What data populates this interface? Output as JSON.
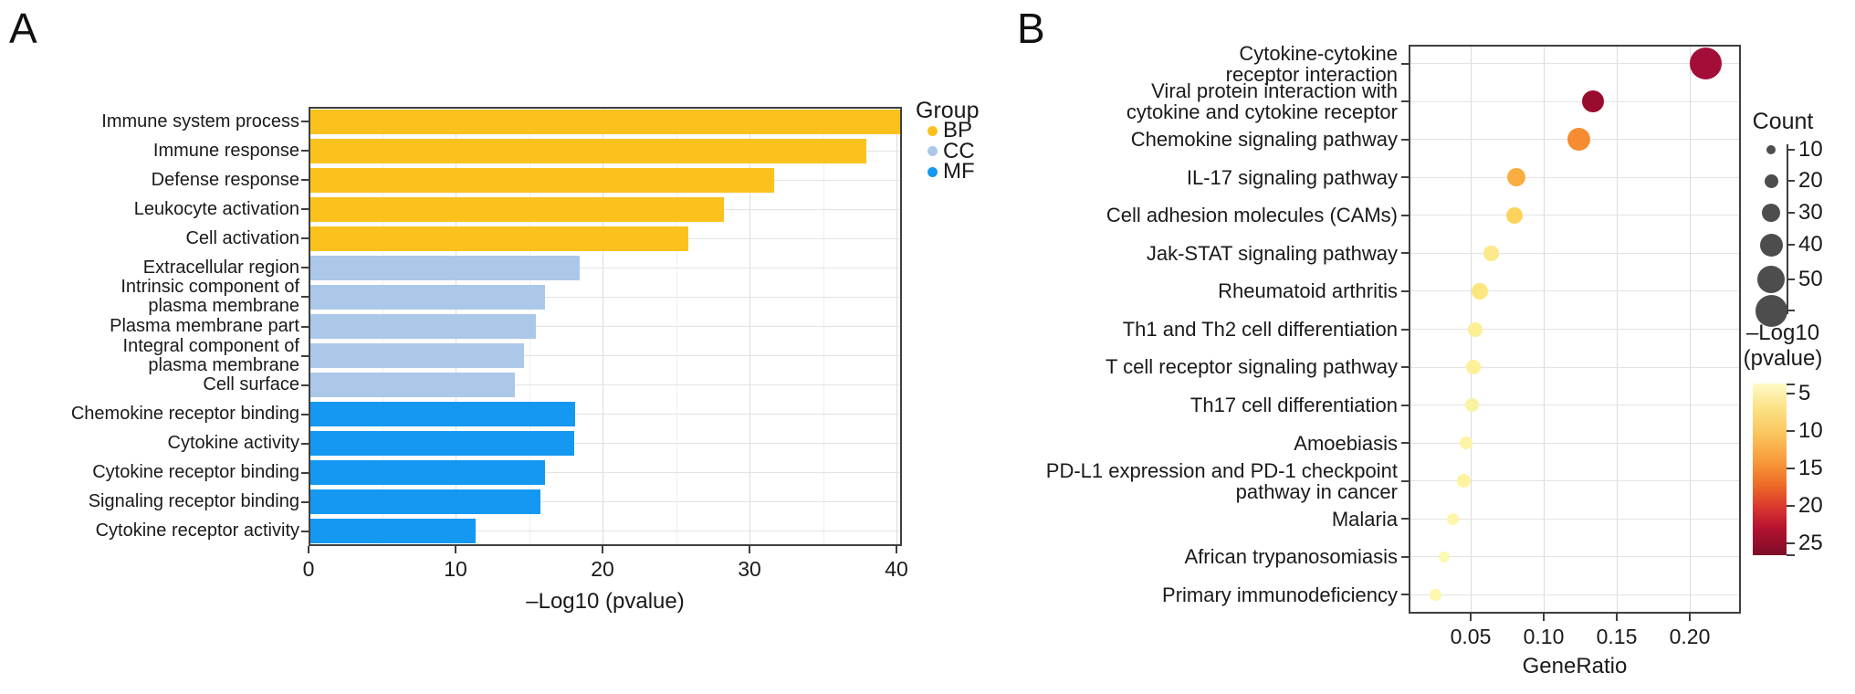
{
  "figure": {
    "panel_a_label": "A",
    "panel_b_label": "B"
  },
  "chart_data": [
    {
      "type": "bar",
      "panel": "A",
      "orientation": "horizontal",
      "xlabel": "–Log10 (pvalue)",
      "xlim": [
        0,
        40.4
      ],
      "xticks": [
        0,
        10,
        20,
        30,
        40
      ],
      "xtick_labels": [
        "0",
        "10",
        "20",
        "30",
        "40"
      ],
      "grid": true,
      "legend": {
        "title": "Group",
        "entries": [
          {
            "label": "BP",
            "color": "#FBC21E"
          },
          {
            "label": "CC",
            "color": "#ACC8E9"
          },
          {
            "label": "MF",
            "color": "#1598F2"
          }
        ]
      },
      "categories": [
        "Immune system process",
        "Immune response",
        "Defense response",
        "Leukocyte activation",
        "Cell activation",
        "Extracellular region",
        "Intrinsic component of\nplasma membrane",
        "Plasma membrane part",
        "Integral component of\nplasma membrane",
        "Cell surface",
        "Chemokine receptor binding",
        "Cytokine activity",
        "Cytokine receptor binding",
        "Signaling receptor binding",
        "Cytokine receptor activity"
      ],
      "values": [
        40.2,
        37.9,
        31.6,
        28.2,
        25.8,
        18.4,
        16.0,
        15.4,
        14.6,
        14.0,
        18.1,
        18.0,
        16.0,
        15.7,
        11.3
      ],
      "bar_groups": [
        "BP",
        "BP",
        "BP",
        "BP",
        "BP",
        "CC",
        "CC",
        "CC",
        "CC",
        "CC",
        "MF",
        "MF",
        "MF",
        "MF",
        "MF"
      ]
    },
    {
      "type": "scatter",
      "panel": "B",
      "xlabel": "GeneRatio",
      "xlim": [
        0.0075,
        0.235
      ],
      "xticks": [
        0.05,
        0.1,
        0.15,
        0.2
      ],
      "xtick_labels": [
        "0.05",
        "0.10",
        "0.15",
        "0.20"
      ],
      "grid": true,
      "categories": [
        "Cytokine-cytokine\nreceptor interaction",
        "Viral protein interaction with\ncytokine and cytokine receptor",
        "Chemokine signaling pathway",
        "IL-17 signaling pathway",
        "Cell adhesion molecules (CAMs)",
        "Jak-STAT signaling pathway",
        "Rheumatoid arthritis",
        "Th1 and Th2 cell differentiation",
        "T cell receptor signaling pathway",
        "Th17 cell differentiation",
        "Amoebiasis",
        "PD-L1 expression and PD-1 checkpoint\npathway in cancer",
        "Malaria",
        "African trypanosomiasis",
        "Primary immunodeficiency"
      ],
      "points": [
        {
          "pathway": "Cytokine-cytokine receptor interaction",
          "gene_ratio": 0.211,
          "count": 60,
          "neg_log10_pvalue": 25.0,
          "color": "#A30E38"
        },
        {
          "pathway": "Viral protein interaction with cytokine and cytokine receptor",
          "gene_ratio": 0.134,
          "count": 38,
          "neg_log10_pvalue": 23.0,
          "color": "#9A0C2E"
        },
        {
          "pathway": "Chemokine signaling pathway",
          "gene_ratio": 0.124,
          "count": 40,
          "neg_log10_pvalue": 13.0,
          "color": "#F68B30"
        },
        {
          "pathway": "IL-17 signaling pathway",
          "gene_ratio": 0.081,
          "count": 30,
          "neg_log10_pvalue": 11.0,
          "color": "#FAAD40"
        },
        {
          "pathway": "Cell adhesion molecules (CAMs)",
          "gene_ratio": 0.08,
          "count": 27,
          "neg_log10_pvalue": 9.0,
          "color": "#FCD45C"
        },
        {
          "pathway": "Jak-STAT signaling pathway",
          "gene_ratio": 0.064,
          "count": 23,
          "neg_log10_pvalue": 7.5,
          "color": "#FDE98C"
        },
        {
          "pathway": "Rheumatoid arthritis",
          "gene_ratio": 0.056,
          "count": 26,
          "neg_log10_pvalue": 7.0,
          "color": "#FCE77F"
        },
        {
          "pathway": "Th1 and Th2 cell differentiation",
          "gene_ratio": 0.053,
          "count": 22,
          "neg_log10_pvalue": 6.5,
          "color": "#FCEF94"
        },
        {
          "pathway": "T cell receptor signaling pathway",
          "gene_ratio": 0.052,
          "count": 22,
          "neg_log10_pvalue": 6.5,
          "color": "#FDF098"
        },
        {
          "pathway": "Th17 cell differentiation",
          "gene_ratio": 0.051,
          "count": 20,
          "neg_log10_pvalue": 6.0,
          "color": "#F8F2A2"
        },
        {
          "pathway": "Amoebiasis",
          "gene_ratio": 0.047,
          "count": 18,
          "neg_log10_pvalue": 5.5,
          "color": "#FDF5A5"
        },
        {
          "pathway": "PD-L1 expression and PD-1 checkpoint pathway in cancer",
          "gene_ratio": 0.045,
          "count": 20,
          "neg_log10_pvalue": 5.5,
          "color": "#FDF3A0"
        },
        {
          "pathway": "Malaria",
          "gene_ratio": 0.038,
          "count": 16,
          "neg_log10_pvalue": 5.0,
          "color": "#FDF6AA"
        },
        {
          "pathway": "African trypanosomiasis",
          "gene_ratio": 0.032,
          "count": 14,
          "neg_log10_pvalue": 4.5,
          "color": "#FDF8B2"
        },
        {
          "pathway": "Primary immunodeficiency",
          "gene_ratio": 0.026,
          "count": 16,
          "neg_log10_pvalue": 4.5,
          "color": "#FDF7AE"
        }
      ],
      "size_legend": {
        "title": "Count",
        "values": [
          10,
          20,
          30,
          40,
          50
        ],
        "dot_color": "#4D4D4D"
      },
      "color_legend": {
        "title_line1": "–Log10",
        "title_line2": "(pvalue)",
        "ticks": [
          5,
          10,
          15,
          20,
          25
        ],
        "gradient_top": "#FEFBC8",
        "gradient_bottom": "#7C0C29"
      }
    }
  ]
}
